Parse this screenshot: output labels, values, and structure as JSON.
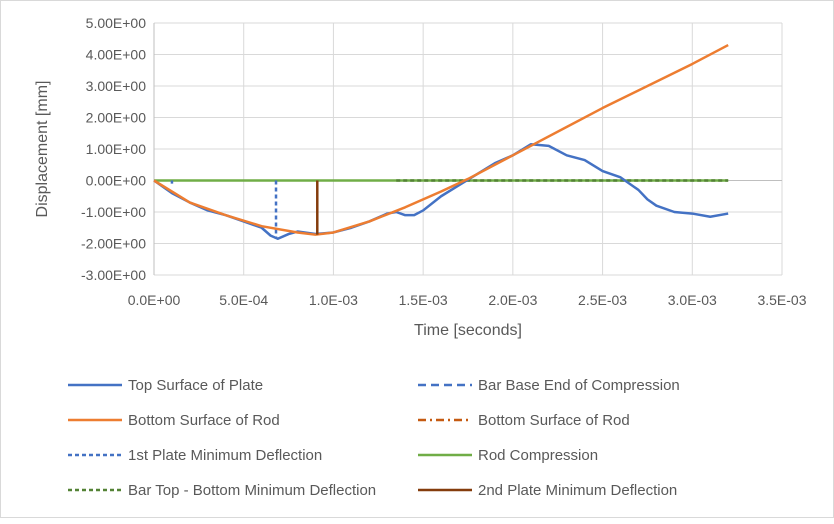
{
  "chart_data": {
    "type": "line",
    "title": "",
    "xlabel": "Time [seconds]",
    "ylabel": "Displacement [mm]",
    "xlim": [
      0,
      0.0035
    ],
    "ylim": [
      -3,
      5
    ],
    "grid": true,
    "legend_position": "bottom",
    "x_ticks": [
      "0.0E+00",
      "5.0E-04",
      "1.0E-03",
      "1.5E-03",
      "2.0E-03",
      "2.5E-03",
      "3.0E-03",
      "3.5E-03"
    ],
    "y_ticks": [
      "5.00E+00",
      "4.00E+00",
      "3.00E+00",
      "2.00E+00",
      "1.00E+00",
      "0.00E+00",
      "-1.00E+00",
      "-2.00E+00",
      "-3.00E+00"
    ],
    "series": [
      {
        "name": "Top Surface of Plate",
        "color": "#4472C4",
        "dash": "solid",
        "x": [
          0,
          0.0001,
          0.0002,
          0.0003,
          0.0004,
          0.0005,
          0.0006,
          0.00065,
          0.00069,
          0.00075,
          0.0008,
          0.0009,
          0.001,
          0.0011,
          0.0012,
          0.0013,
          0.00135,
          0.0014,
          0.00145,
          0.0015,
          0.0016,
          0.0017,
          0.0018,
          0.0019,
          0.002,
          0.0021,
          0.0022,
          0.0023,
          0.0024,
          0.0025,
          0.0026,
          0.0027,
          0.00275,
          0.0028,
          0.0029,
          0.003,
          0.0031,
          0.0032
        ],
        "y": [
          0,
          -0.4,
          -0.7,
          -0.95,
          -1.1,
          -1.3,
          -1.5,
          -1.75,
          -1.85,
          -1.7,
          -1.62,
          -1.7,
          -1.65,
          -1.5,
          -1.3,
          -1.05,
          -1.0,
          -1.1,
          -1.1,
          -0.95,
          -0.5,
          -0.15,
          0.2,
          0.55,
          0.8,
          1.15,
          1.1,
          0.8,
          0.65,
          0.3,
          0.1,
          -0.3,
          -0.6,
          -0.8,
          -1.0,
          -1.05,
          -1.15,
          -1.05
        ]
      },
      {
        "name": "Bar Base End of Compression",
        "color": "#4472C4",
        "dash": "8,5",
        "x": [
          0.0001,
          0.0001
        ],
        "y": [
          0,
          -0.1
        ]
      },
      {
        "name": "Bottom Surface of Rod",
        "color": "#ED7D31",
        "dash": "solid",
        "x": [
          0,
          0.0002,
          0.0004,
          0.0006,
          0.0008,
          0.0009,
          0.001,
          0.0012,
          0.0014,
          0.0016,
          0.00175,
          0.002,
          0.0025,
          0.003,
          0.0032
        ],
        "y": [
          0,
          -0.7,
          -1.1,
          -1.45,
          -1.65,
          -1.72,
          -1.65,
          -1.3,
          -0.85,
          -0.35,
          0.05,
          0.8,
          2.3,
          3.7,
          4.3
        ]
      },
      {
        "name": "Bottom Surface of Rod",
        "color": "#C55A11",
        "dash": "8,4,2,4",
        "x": [],
        "y": []
      },
      {
        "name": "1st Plate Minimum Deflection",
        "color": "#4472C4",
        "dash": "4,3",
        "x": [
          0.00068,
          0.00068
        ],
        "y": [
          0,
          -1.85
        ]
      },
      {
        "name": "Rod Compression",
        "color": "#70AD47",
        "dash": "solid",
        "x": [
          0,
          0.0032
        ],
        "y": [
          0,
          0
        ]
      },
      {
        "name": "Bar Top - Bottom Minimum Deflection",
        "color": "#548235",
        "dash": "4,3",
        "x": [
          0.00135,
          0.0032
        ],
        "y": [
          0,
          0
        ]
      },
      {
        "name": "2nd Plate Minimum Deflection",
        "color": "#843C0C",
        "dash": "solid",
        "x": [
          0.00091,
          0.00091
        ],
        "y": [
          0,
          -1.72
        ]
      }
    ]
  }
}
